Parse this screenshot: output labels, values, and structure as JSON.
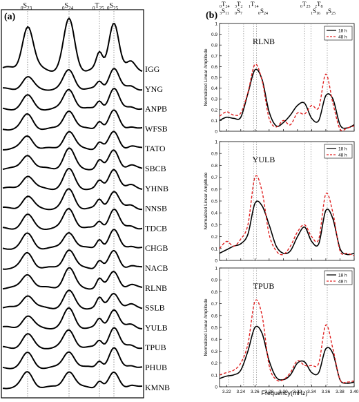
{
  "panel_a": {
    "panel_label": "(a)",
    "mode_labels": [
      {
        "base": "0",
        "sub": "S",
        "idx": "23"
      },
      {
        "base": "0",
        "sub": "S",
        "idx": "24"
      },
      {
        "base": "0",
        "sub": "T",
        "idx": "25"
      },
      {
        "base": "0",
        "sub": "S",
        "idx": "25"
      }
    ],
    "stations": [
      "IGG",
      "YNG",
      "ANPB",
      "WFSB",
      "TATO",
      "SBCB",
      "YHNB",
      "NNSB",
      "TDCB",
      "CHGB",
      "NACB",
      "RLNB",
      "SSLB",
      "YULB",
      "TPUB",
      "PHUB",
      "KMNB"
    ]
  },
  "panel_b": {
    "panel_label": "(b)",
    "top_mode_labels": [
      {
        "text": "0T24",
        "pos": "left-top"
      },
      {
        "text": "3S11",
        "pos": "left-bottom"
      },
      {
        "text": "3T2",
        "pos": "l2-top"
      },
      {
        "text": "0S7",
        "pos": "l2-bottom"
      },
      {
        "text": "1T14",
        "pos": "l3-top"
      },
      {
        "text": "0S24",
        "pos": "l3-bottom"
      },
      {
        "text": "0T25",
        "pos": "r1-top"
      },
      {
        "text": "2T8",
        "pos": "r2-top"
      },
      {
        "text": "1S16",
        "pos": "r2-bottom"
      },
      {
        "text": "0S25",
        "pos": "r3-bottom"
      }
    ],
    "xlabel": "Frequency(mHz)",
    "ylabel": "Normalized Linear Amplitude",
    "legend": [
      "18 h",
      "48 h"
    ],
    "colors": {
      "line18": "#000000",
      "line48": "#e02020"
    }
  },
  "chart_data": [
    {
      "type": "line",
      "title": "RLNB",
      "x": [
        3.21,
        3.22,
        3.23,
        3.24,
        3.25,
        3.26,
        3.27,
        3.28,
        3.29,
        3.3,
        3.31,
        3.32,
        3.33,
        3.34,
        3.35,
        3.36,
        3.37,
        3.38,
        3.39,
        3.4
      ],
      "series": [
        {
          "name": "18 h",
          "values": [
            0.1,
            0.13,
            0.12,
            0.13,
            0.35,
            0.57,
            0.48,
            0.18,
            0.05,
            0.08,
            0.15,
            0.24,
            0.26,
            0.12,
            0.1,
            0.33,
            0.3,
            0.06,
            0.03,
            0.06
          ]
        },
        {
          "name": "48 h",
          "values": [
            0.14,
            0.18,
            0.15,
            0.17,
            0.36,
            0.62,
            0.47,
            0.12,
            0.04,
            0.1,
            0.06,
            0.17,
            0.16,
            0.24,
            0.22,
            0.53,
            0.26,
            0.02,
            0.03,
            0.05
          ]
        }
      ],
      "ylim": [
        0,
        1
      ],
      "xlim": [
        3.21,
        3.4
      ]
    },
    {
      "type": "line",
      "title": "YULB",
      "x": [
        3.21,
        3.22,
        3.23,
        3.24,
        3.25,
        3.26,
        3.27,
        3.28,
        3.29,
        3.3,
        3.31,
        3.32,
        3.33,
        3.34,
        3.35,
        3.36,
        3.37,
        3.38,
        3.39,
        3.4
      ],
      "series": [
        {
          "name": "18 h",
          "values": [
            0.06,
            0.09,
            0.12,
            0.14,
            0.22,
            0.48,
            0.46,
            0.3,
            0.12,
            0.06,
            0.08,
            0.2,
            0.28,
            0.16,
            0.14,
            0.42,
            0.35,
            0.1,
            0.05,
            0.06
          ]
        },
        {
          "name": "48 h",
          "values": [
            0.1,
            0.16,
            0.12,
            0.18,
            0.3,
            0.7,
            0.58,
            0.22,
            0.08,
            0.05,
            0.12,
            0.24,
            0.3,
            0.2,
            0.18,
            0.56,
            0.4,
            0.08,
            0.06,
            0.04
          ]
        }
      ],
      "ylim": [
        0,
        1
      ],
      "xlim": [
        3.21,
        3.4
      ]
    },
    {
      "type": "line",
      "title": "TPUB",
      "x": [
        3.21,
        3.22,
        3.23,
        3.24,
        3.25,
        3.26,
        3.27,
        3.28,
        3.29,
        3.3,
        3.31,
        3.32,
        3.33,
        3.34,
        3.35,
        3.36,
        3.37,
        3.38,
        3.39,
        3.4
      ],
      "series": [
        {
          "name": "18 h",
          "values": [
            0.07,
            0.09,
            0.1,
            0.14,
            0.3,
            0.5,
            0.45,
            0.22,
            0.08,
            0.06,
            0.1,
            0.2,
            0.21,
            0.12,
            0.12,
            0.32,
            0.28,
            0.06,
            0.03,
            0.04
          ]
        },
        {
          "name": "48 h",
          "values": [
            0.1,
            0.12,
            0.14,
            0.2,
            0.36,
            0.72,
            0.6,
            0.18,
            0.06,
            0.06,
            0.12,
            0.22,
            0.18,
            0.18,
            0.2,
            0.52,
            0.32,
            0.06,
            0.04,
            0.05
          ]
        }
      ],
      "ylim": [
        0,
        1
      ],
      "xlim": [
        3.21,
        3.4
      ]
    }
  ]
}
